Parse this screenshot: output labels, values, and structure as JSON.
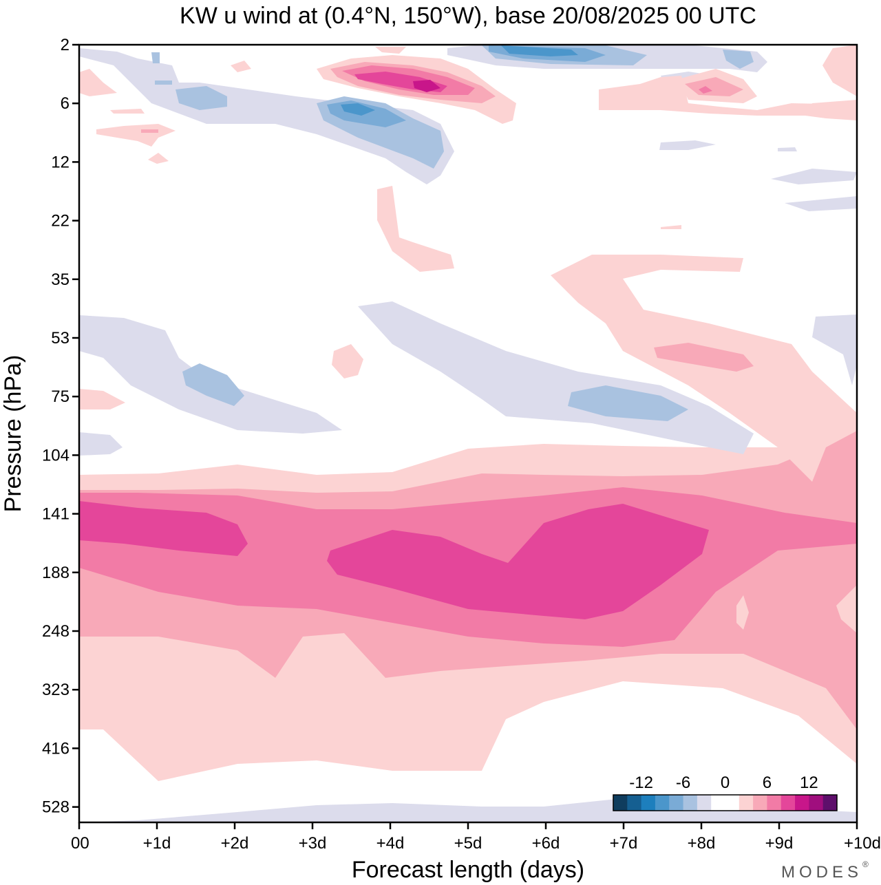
{
  "chart_data": {
    "type": "contour",
    "title": "KW u wind at (0.4°N, 150°W),  base 20/08/2025  00 UTC",
    "xlabel": "Forecast length (days)",
    "ylabel": "Pressure (hPa)",
    "x_ticks": [
      "00",
      "+1d",
      "+2d",
      "+3d",
      "+4d",
      "+5d",
      "+6d",
      "+7d",
      "+8d",
      "+9d",
      "+10d"
    ],
    "x_range_days": [
      0,
      10
    ],
    "y_ticks": [
      "2",
      "6",
      "12",
      "22",
      "35",
      "53",
      "75",
      "104",
      "141",
      "188",
      "248",
      "323",
      "416",
      "528"
    ],
    "y_scale": "categorical pressure levels (top = 2 hPa, bottom ~600 hPa)",
    "colorbar": {
      "labels": [
        "-12",
        "-6",
        "0",
        "6",
        "12"
      ],
      "levels": [
        -16,
        -14,
        -12,
        -10,
        -8,
        -6,
        -4,
        -2,
        0,
        2,
        4,
        6,
        8,
        10,
        12,
        14,
        16
      ],
      "colors": [
        "#0f3d5e",
        "#155f91",
        "#1d7fbd",
        "#4b96cb",
        "#7aabd6",
        "#a9c2e0",
        "#dcdcec",
        "#ffffff",
        "#ffffff",
        "#fcd3d3",
        "#f8a9b8",
        "#f27ba6",
        "#e4469a",
        "#c8168a",
        "#a00e7e",
        "#5e0f6b"
      ]
    },
    "features": [
      {
        "name": "lower-tropospheric westerly jet",
        "level_hPa": "141-248",
        "days": [
          0,
          10
        ],
        "max_value": 10
      },
      {
        "name": "upper stratospheric easterly",
        "level_hPa": "2-12",
        "days": [
          3.5,
          5
        ],
        "min_value": -10
      },
      {
        "name": "upper stratospheric westerly",
        "level_hPa": "2-6",
        "days": [
          3.5,
          5
        ],
        "max_value": 12
      },
      {
        "name": "mid easterly band",
        "level_hPa": "53-104",
        "days": [
          0,
          9
        ],
        "min_value": -4
      }
    ]
  },
  "brand": "MODES",
  "brand_mark": "®"
}
